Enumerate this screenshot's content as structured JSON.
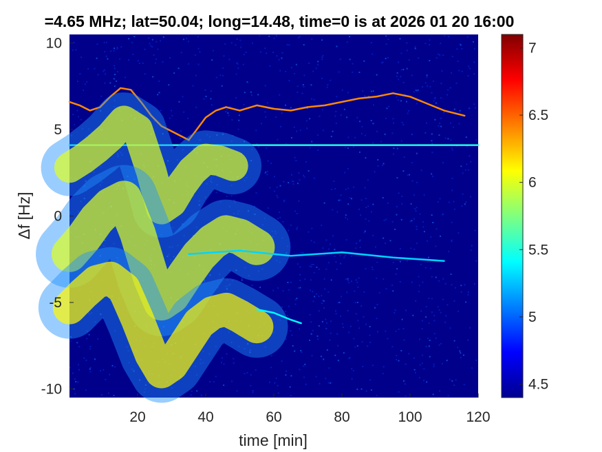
{
  "chart_data": {
    "type": "heatmap",
    "title": "=4.65 MHz;  lat=50.04; long=14.48, time=0 is at 2026 01 20 16:00",
    "xlabel": "time [min]",
    "ylabel": "Δf [Hz]",
    "xlim": [
      0,
      120
    ],
    "ylim": [
      -10.5,
      10.5
    ],
    "x_ticks": [
      20,
      40,
      60,
      80,
      100,
      120
    ],
    "y_ticks": [
      -10,
      -5,
      0,
      5,
      10
    ],
    "x_tick_labels": [
      "20",
      "40",
      "60",
      "80",
      "100",
      "120"
    ],
    "y_tick_labels": [
      "-10",
      "-5",
      "0",
      "5",
      "10"
    ],
    "colormap": "jet",
    "background_color": "#00008b",
    "colorbar": {
      "range": [
        4.4,
        7.1
      ],
      "ticks": [
        4.5,
        5,
        5.5,
        6,
        6.5,
        7
      ],
      "tick_labels": [
        "4.5",
        "5",
        "5.5",
        "6",
        "6.5",
        "7"
      ]
    },
    "traces": [
      {
        "kind": "line",
        "name": "",
        "intensity": 6.4,
        "points": [
          [
            0,
            6.6
          ],
          [
            3,
            6.4
          ],
          [
            6,
            6.1
          ],
          [
            9,
            6.3
          ],
          [
            12,
            6.9
          ],
          [
            15,
            7.4
          ],
          [
            18,
            7.3
          ],
          [
            21,
            6.6
          ],
          [
            24,
            5.8
          ],
          [
            27,
            5.2
          ],
          [
            30,
            4.9
          ],
          [
            33,
            4.6
          ],
          [
            35,
            4.4
          ],
          [
            37,
            4.9
          ],
          [
            40,
            5.7
          ],
          [
            43,
            6.1
          ],
          [
            46,
            6.3
          ],
          [
            50,
            6.1
          ],
          [
            55,
            6.4
          ],
          [
            60,
            6.2
          ],
          [
            65,
            6.1
          ],
          [
            70,
            6.3
          ],
          [
            75,
            6.4
          ],
          [
            80,
            6.6
          ],
          [
            85,
            6.8
          ],
          [
            90,
            6.9
          ],
          [
            95,
            7.1
          ],
          [
            100,
            6.9
          ],
          [
            105,
            6.5
          ],
          [
            110,
            6.1
          ],
          [
            116,
            5.8
          ]
        ]
      },
      {
        "kind": "line",
        "name": "",
        "intensity": 5.5,
        "points": [
          [
            0,
            4.1
          ],
          [
            120,
            4.1
          ]
        ]
      },
      {
        "kind": "band",
        "name": "",
        "intensity": 6.0,
        "width": 2.2,
        "points": [
          [
            0,
            2.8
          ],
          [
            4,
            3.3
          ],
          [
            8,
            3.9
          ],
          [
            12,
            4.6
          ],
          [
            16,
            5.5
          ],
          [
            20,
            5.0
          ],
          [
            24,
            2.6
          ],
          [
            27,
            0.4
          ],
          [
            30,
            0.8
          ],
          [
            33,
            1.8
          ],
          [
            36,
            2.6
          ],
          [
            40,
            3.3
          ],
          [
            44,
            3.2
          ],
          [
            48,
            2.9
          ]
        ]
      },
      {
        "kind": "band",
        "name": "",
        "intensity": 6.0,
        "width": 2.6,
        "points": [
          [
            0,
            -2.2
          ],
          [
            4,
            -1.3
          ],
          [
            8,
            -0.2
          ],
          [
            12,
            0.6
          ],
          [
            16,
            1.0
          ],
          [
            20,
            -1.0
          ],
          [
            24,
            -3.6
          ],
          [
            27,
            -5.0
          ],
          [
            30,
            -4.6
          ],
          [
            34,
            -3.4
          ],
          [
            38,
            -2.3
          ],
          [
            42,
            -1.5
          ],
          [
            46,
            -1.0
          ],
          [
            50,
            -1.2
          ],
          [
            55,
            -1.8
          ]
        ]
      },
      {
        "kind": "band",
        "name": "",
        "intensity": 6.1,
        "width": 2.4,
        "points": [
          [
            0,
            -5.3
          ],
          [
            4,
            -4.5
          ],
          [
            8,
            -3.8
          ],
          [
            12,
            -3.6
          ],
          [
            16,
            -4.2
          ],
          [
            20,
            -6.0
          ],
          [
            24,
            -8.0
          ],
          [
            27,
            -9.0
          ],
          [
            30,
            -8.6
          ],
          [
            34,
            -7.4
          ],
          [
            38,
            -6.2
          ],
          [
            42,
            -5.6
          ],
          [
            46,
            -5.4
          ],
          [
            50,
            -5.8
          ],
          [
            55,
            -6.4
          ]
        ]
      },
      {
        "kind": "line",
        "name": "",
        "intensity": 5.3,
        "points": [
          [
            35,
            -2.2
          ],
          [
            50,
            -2.0
          ],
          [
            65,
            -2.3
          ],
          [
            80,
            -2.1
          ],
          [
            95,
            -2.4
          ],
          [
            110,
            -2.6
          ]
        ]
      },
      {
        "kind": "line",
        "name": "",
        "intensity": 5.4,
        "points": [
          [
            55,
            -5.4
          ],
          [
            60,
            -5.6
          ],
          [
            65,
            -6.0
          ],
          [
            68,
            -6.2
          ]
        ]
      }
    ]
  }
}
